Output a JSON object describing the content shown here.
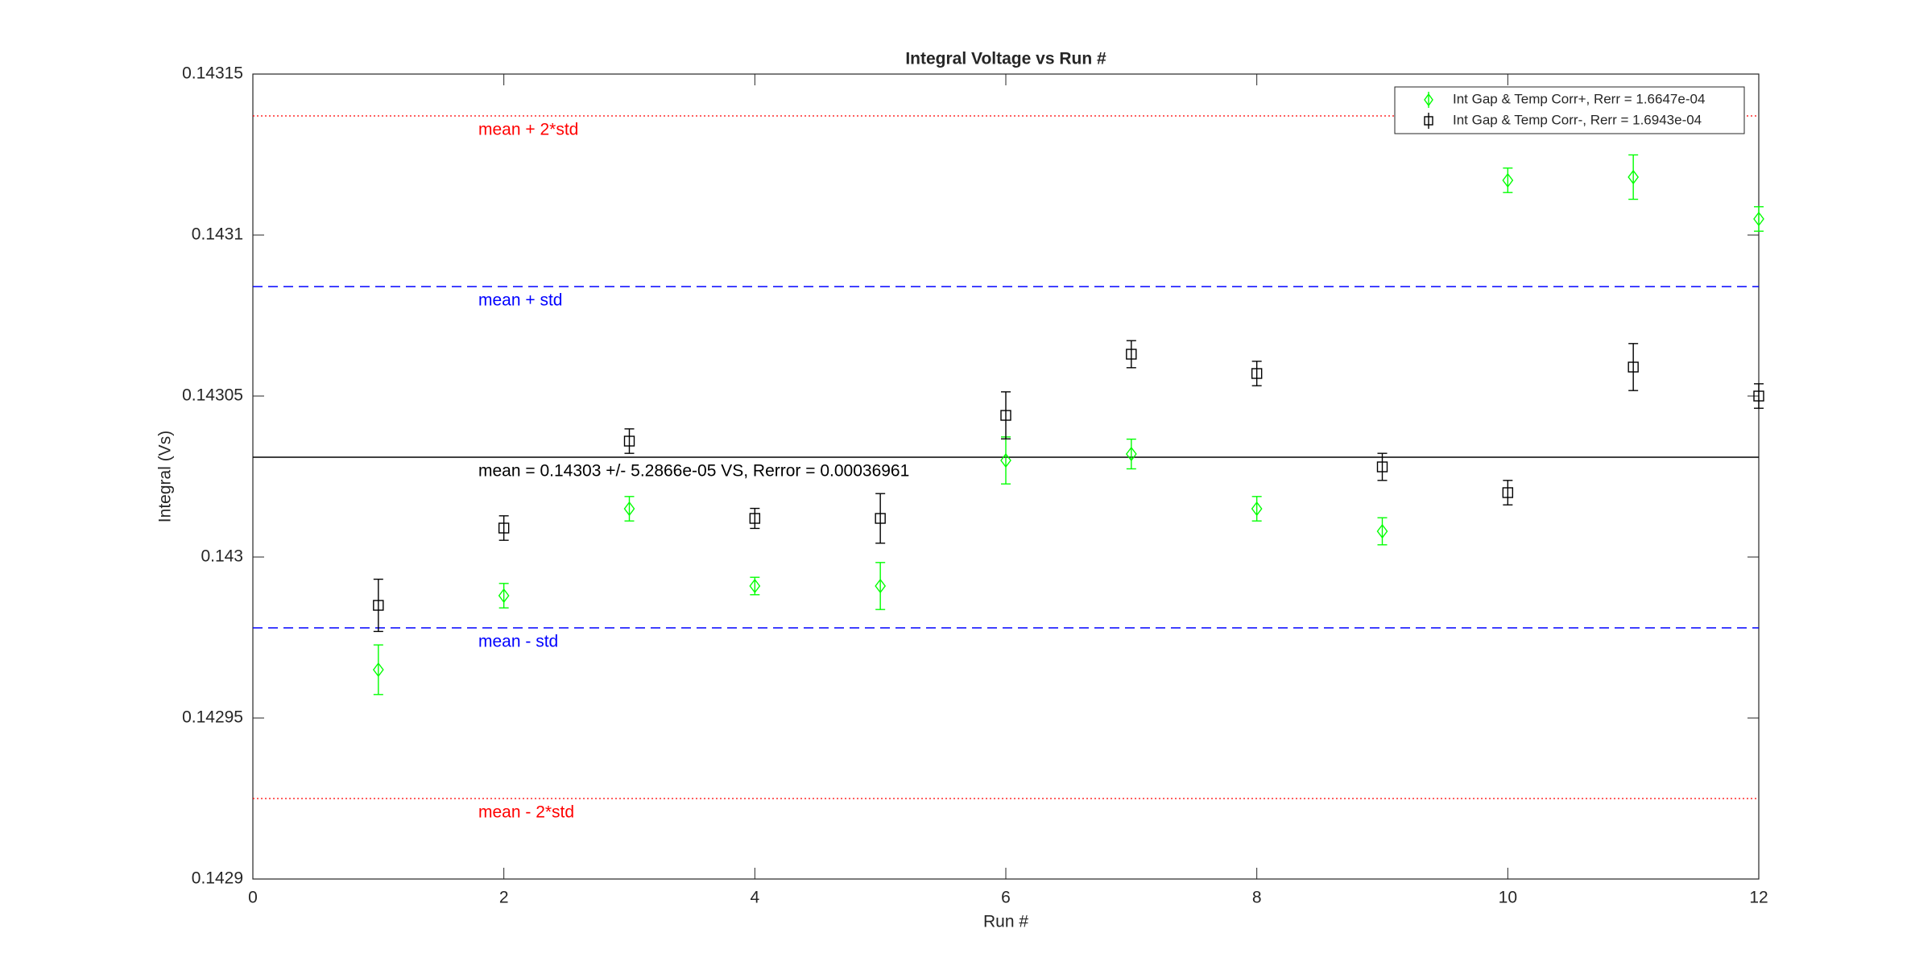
{
  "chart_data": {
    "type": "errorbar",
    "title": "Integral Voltage vs Run #",
    "x_label": "Run #",
    "y_label": "Integral (Vs)",
    "x": [
      1,
      2,
      3,
      4,
      5,
      6,
      7,
      8,
      9,
      10,
      11,
      12
    ],
    "series": [
      {
        "name": "Int Gap & Temp Corr+, Rerr = 1.6647e-04",
        "color": "#00ff00",
        "marker": "diamond",
        "values": [
          0.142965,
          0.142988,
          0.143015,
          0.142991,
          0.142991,
          0.14303,
          0.143032,
          0.143015,
          0.143008,
          0.143117,
          0.143118,
          0.143105
        ],
        "errors": [
          7.7e-06,
          3.8e-06,
          3.8e-06,
          2.7e-06,
          7.3e-06,
          7.3e-06,
          4.6e-06,
          3.8e-06,
          4.2e-06,
          3.8e-06,
          6.9e-06,
          3.8e-06
        ]
      },
      {
        "name": "Int Gap & Temp Corr-, Rerr = 1.6943e-04",
        "color": "#000000",
        "marker": "square",
        "values": [
          0.142985,
          0.143009,
          0.143036,
          0.143012,
          0.143012,
          0.143044,
          0.143063,
          0.143057,
          0.143028,
          0.14302,
          0.143059,
          0.14305
        ],
        "errors": [
          8.1e-06,
          3.8e-06,
          3.8e-06,
          3.1e-06,
          7.7e-06,
          7.3e-06,
          4.2e-06,
          3.8e-06,
          4.2e-06,
          3.8e-06,
          7.3e-06,
          3.8e-06
        ]
      }
    ],
    "reference_lines": [
      {
        "label": "mean + 2*std",
        "value": 0.143137,
        "color": "#ff0000",
        "style": "dotted"
      },
      {
        "label": "mean + std",
        "value": 0.143084,
        "color": "#0000ff",
        "style": "dashed"
      },
      {
        "label": "mean = 0.14303 +/- 5.2866e-05 VS, Rerror = 0.00036961",
        "value": 0.143031,
        "color": "#000000",
        "style": "solid"
      },
      {
        "label": "mean - std",
        "value": 0.142978,
        "color": "#0000ff",
        "style": "dashed"
      },
      {
        "label": "mean - 2*std",
        "value": 0.142925,
        "color": "#ff0000",
        "style": "dotted"
      }
    ],
    "xlim": [
      0,
      12
    ],
    "xticks": [
      0,
      2,
      4,
      6,
      8,
      10,
      12
    ],
    "ylim": [
      0.1429,
      0.14315
    ],
    "yticks": [
      0.1429,
      0.14295,
      0.143,
      0.14305,
      0.1431,
      0.14315
    ],
    "legend": "top-right"
  }
}
